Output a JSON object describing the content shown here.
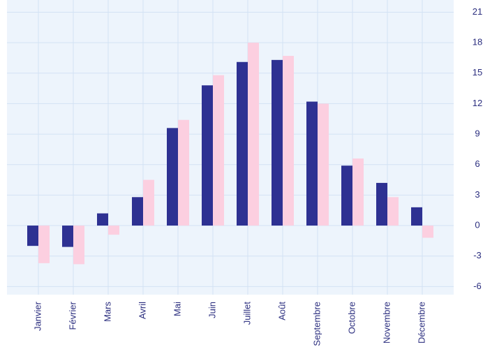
{
  "chart_data": {
    "type": "bar",
    "categories": [
      "Janvier",
      "Février",
      "Mars",
      "Avril",
      "Mai",
      "Juin",
      "Juillet",
      "Août",
      "Septembre",
      "Octobre",
      "Novembre",
      "Décembre"
    ],
    "series": [
      {
        "color": "#2e3192",
        "values": [
          -2.0,
          -2.1,
          1.2,
          2.8,
          9.6,
          13.8,
          16.1,
          16.3,
          12.2,
          5.9,
          4.2,
          1.8
        ]
      },
      {
        "color": "#fccfe0",
        "values": [
          -3.7,
          -3.8,
          -0.9,
          4.5,
          10.4,
          14.8,
          18.0,
          16.7,
          12.0,
          6.6,
          2.8,
          -1.2
        ]
      }
    ],
    "ylim": [
      -6.8,
      22.2
    ],
    "yticks": [
      -6,
      -3,
      0,
      3,
      6,
      9,
      12,
      15,
      18,
      21
    ],
    "grid": true,
    "background": "#edf4fc"
  }
}
